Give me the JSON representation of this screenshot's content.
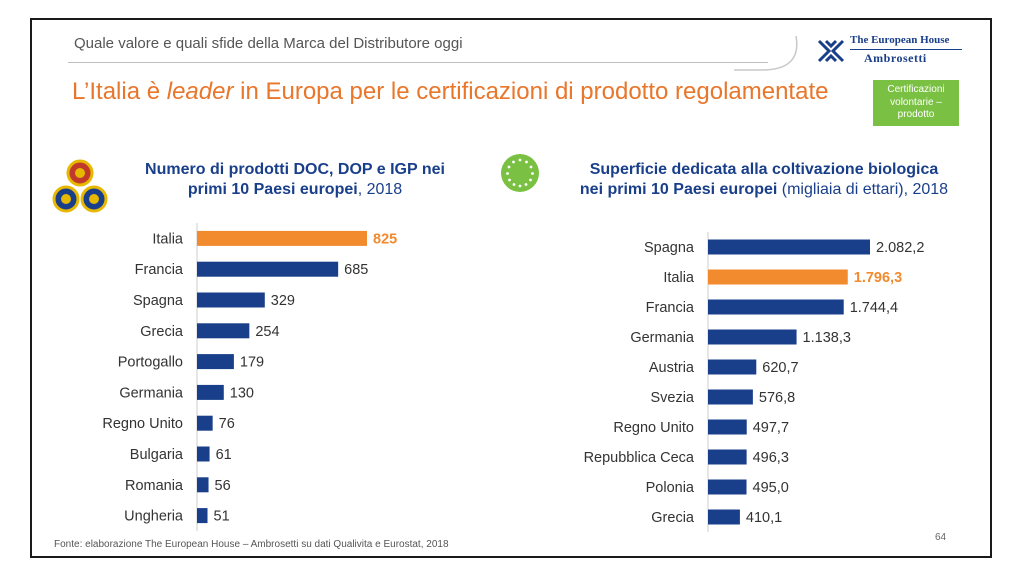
{
  "header": {
    "topic": "Quale valore e quali sfide della Marca del Distributore oggi",
    "brand_line1": "The European House",
    "brand_line2": "Ambrosetti",
    "headline_pre": "L’Italia è ",
    "headline_em": "leader",
    "headline_post": " in Europa per le certificazioni di prodotto regolamentate",
    "badge": "Certificazioni volontarie – prodotto"
  },
  "left_title": {
    "bold1": "Numero di prodotti DOC, DOP e IGP nei",
    "bold2": "primi 10 Paesi europei",
    "rest2": ", 2018"
  },
  "right_title": {
    "bold1": "Superficie dedicata alla coltivazione biologica",
    "bold2": "nei primi 10 Paesi europei",
    "rest2": " (migliaia di ettari), 2018"
  },
  "chart_data": [
    {
      "type": "bar",
      "orientation": "horizontal",
      "title": "Numero di prodotti DOC, DOP e IGP nei primi 10 Paesi europei, 2018",
      "categories": [
        "Italia",
        "Francia",
        "Spagna",
        "Grecia",
        "Portogallo",
        "Germania",
        "Regno Unito",
        "Bulgaria",
        "Romania",
        "Ungheria"
      ],
      "values": [
        825,
        685,
        329,
        254,
        179,
        130,
        76,
        61,
        56,
        51
      ],
      "labels": [
        "825",
        "685",
        "329",
        "254",
        "179",
        "130",
        "76",
        "61",
        "56",
        "51"
      ],
      "highlight": "Italia",
      "colors": {
        "default": "#1a3f8a",
        "highlight": "#f28a2e"
      },
      "xlim": [
        0,
        825
      ]
    },
    {
      "type": "bar",
      "orientation": "horizontal",
      "title": "Superficie dedicata alla coltivazione biologica nei primi 10 Paesi europei (migliaia di ettari), 2018",
      "categories": [
        "Spagna",
        "Italia",
        "Francia",
        "Germania",
        "Austria",
        "Svezia",
        "Regno Unito",
        "Repubblica Ceca",
        "Polonia",
        "Grecia"
      ],
      "values": [
        2082.2,
        1796.3,
        1744.4,
        1138.3,
        620.7,
        576.8,
        497.7,
        496.3,
        495.0,
        410.1
      ],
      "labels": [
        "2.082,2",
        "1.796,3",
        "1.744,4",
        "1.138,3",
        "620,7",
        "576,8",
        "497,7",
        "496,3",
        "495,0",
        "410,1"
      ],
      "highlight": "Italia",
      "colors": {
        "default": "#1a3f8a",
        "highlight": "#f28a2e"
      },
      "xlim": [
        0,
        2082.2
      ]
    }
  ],
  "footer": {
    "source": "Fonte: elaborazione The European House – Ambrosetti su dati Qualivita e Eurostat, 2018",
    "page": "64"
  }
}
